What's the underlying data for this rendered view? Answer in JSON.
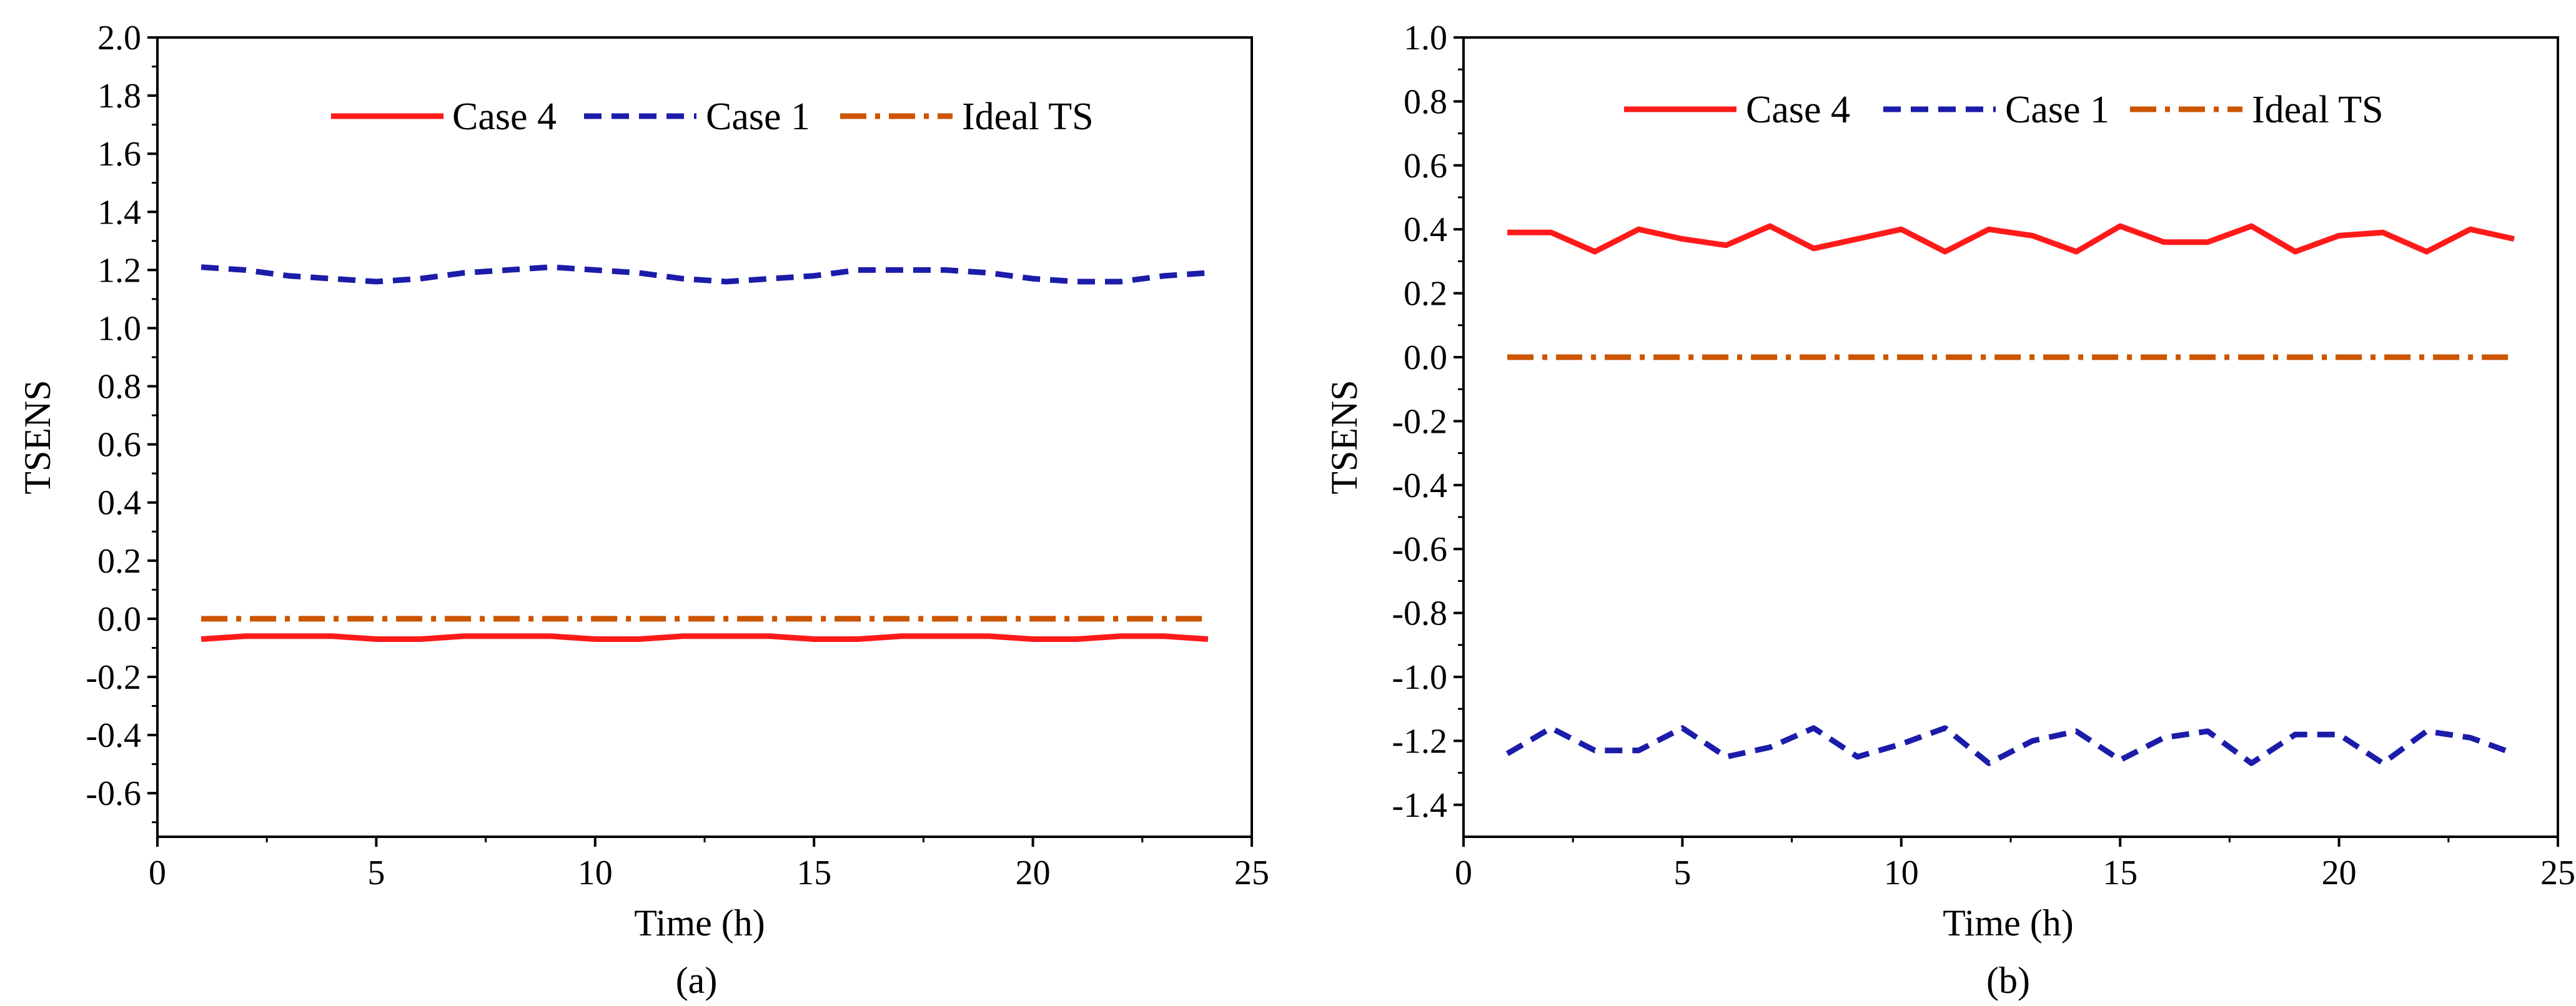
{
  "colors": {
    "case4": "#ff1a1a",
    "case1": "#1c1caa",
    "ideal": "#cc5500",
    "axis": "#000000"
  },
  "chart_data": [
    {
      "type": "line",
      "caption": "(a)",
      "xlabel": "Time (h)",
      "ylabel": "TSENS",
      "xlim": [
        0,
        25
      ],
      "ylim": [
        -0.75,
        2.0
      ],
      "xticks": [
        0,
        5,
        10,
        15,
        20,
        25
      ],
      "xtick_labels": [
        "0",
        "5",
        "10",
        "15",
        "20",
        "25"
      ],
      "yticks": [
        2.0,
        1.8,
        1.6,
        1.4,
        1.2,
        1.0,
        0.8,
        0.6,
        0.4,
        0.2,
        0.0,
        -0.2,
        -0.4,
        -0.6
      ],
      "ytick_labels": [
        "2.0",
        "1.8",
        "1.6",
        "1.4",
        "1.2",
        "1.0",
        "0.8",
        "0.6",
        "0.4",
        "0.2",
        "0.0",
        "-0.2",
        "-0.4",
        "-0.6"
      ],
      "legend_position": "top-right",
      "x": [
        1,
        2,
        3,
        4,
        5,
        6,
        7,
        8,
        9,
        10,
        11,
        12,
        13,
        14,
        15,
        16,
        17,
        18,
        19,
        20,
        21,
        22,
        23,
        24
      ],
      "series": [
        {
          "name": "Case 4",
          "style": "solid",
          "color_key": "case4",
          "values": [
            -0.07,
            -0.06,
            -0.06,
            -0.06,
            -0.07,
            -0.07,
            -0.06,
            -0.06,
            -0.06,
            -0.07,
            -0.07,
            -0.06,
            -0.06,
            -0.06,
            -0.07,
            -0.07,
            -0.06,
            -0.06,
            -0.06,
            -0.07,
            -0.07,
            -0.06,
            -0.06,
            -0.07
          ]
        },
        {
          "name": "Case 1",
          "style": "dashed",
          "color_key": "case1",
          "values": [
            1.21,
            1.2,
            1.18,
            1.17,
            1.16,
            1.17,
            1.19,
            1.2,
            1.21,
            1.2,
            1.19,
            1.17,
            1.16,
            1.17,
            1.18,
            1.2,
            1.2,
            1.2,
            1.19,
            1.17,
            1.16,
            1.16,
            1.18,
            1.19
          ]
        },
        {
          "name": "Ideal TS",
          "style": "dashdot",
          "color_key": "ideal",
          "values": [
            0,
            0,
            0,
            0,
            0,
            0,
            0,
            0,
            0,
            0,
            0,
            0,
            0,
            0,
            0,
            0,
            0,
            0,
            0,
            0,
            0,
            0,
            0,
            0
          ]
        }
      ]
    },
    {
      "type": "line",
      "caption": "(b)",
      "xlabel": "Time (h)",
      "ylabel": "TSENS",
      "xlim": [
        0,
        25
      ],
      "ylim": [
        -1.5,
        1.0
      ],
      "xticks": [
        0,
        5,
        10,
        15,
        20,
        25
      ],
      "xtick_labels": [
        "0",
        "5",
        "10",
        "15",
        "20",
        "25"
      ],
      "yticks": [
        1.0,
        0.8,
        0.6,
        0.4,
        0.2,
        0.0,
        -0.2,
        -0.4,
        -0.6,
        -0.8,
        -1.0,
        -1.2,
        -1.4
      ],
      "ytick_labels": [
        "1.0",
        "0.8",
        "0.6",
        "0.4",
        "0.2",
        "0.0",
        "-0.2",
        "-0.4",
        "-0.6",
        "-0.8",
        "-1.0",
        "-1.2",
        "-1.4"
      ],
      "legend_position": "top-right",
      "x": [
        1,
        2,
        3,
        4,
        5,
        6,
        7,
        8,
        9,
        10,
        11,
        12,
        13,
        14,
        15,
        16,
        17,
        18,
        19,
        20,
        21,
        22,
        23,
        24
      ],
      "series": [
        {
          "name": "Case 4",
          "style": "solid",
          "color_key": "case4",
          "values": [
            0.39,
            0.39,
            0.33,
            0.4,
            0.37,
            0.35,
            0.41,
            0.34,
            0.37,
            0.4,
            0.33,
            0.4,
            0.38,
            0.33,
            0.41,
            0.36,
            0.36,
            0.41,
            0.33,
            0.38,
            0.39,
            0.33,
            0.4,
            0.37
          ]
        },
        {
          "name": "Case 1",
          "style": "dashed",
          "color_key": "case1",
          "values": [
            -1.24,
            -1.16,
            -1.23,
            -1.23,
            -1.16,
            -1.25,
            -1.22,
            -1.16,
            -1.25,
            -1.21,
            -1.16,
            -1.27,
            -1.2,
            -1.17,
            -1.26,
            -1.19,
            -1.17,
            -1.27,
            -1.18,
            -1.18,
            -1.27,
            -1.17,
            -1.19,
            -1.24
          ]
        },
        {
          "name": "Ideal TS",
          "style": "dashdot",
          "color_key": "ideal",
          "values": [
            0,
            0,
            0,
            0,
            0,
            0,
            0,
            0,
            0,
            0,
            0,
            0,
            0,
            0,
            0,
            0,
            0,
            0,
            0,
            0,
            0,
            0,
            0,
            0
          ]
        }
      ]
    }
  ]
}
